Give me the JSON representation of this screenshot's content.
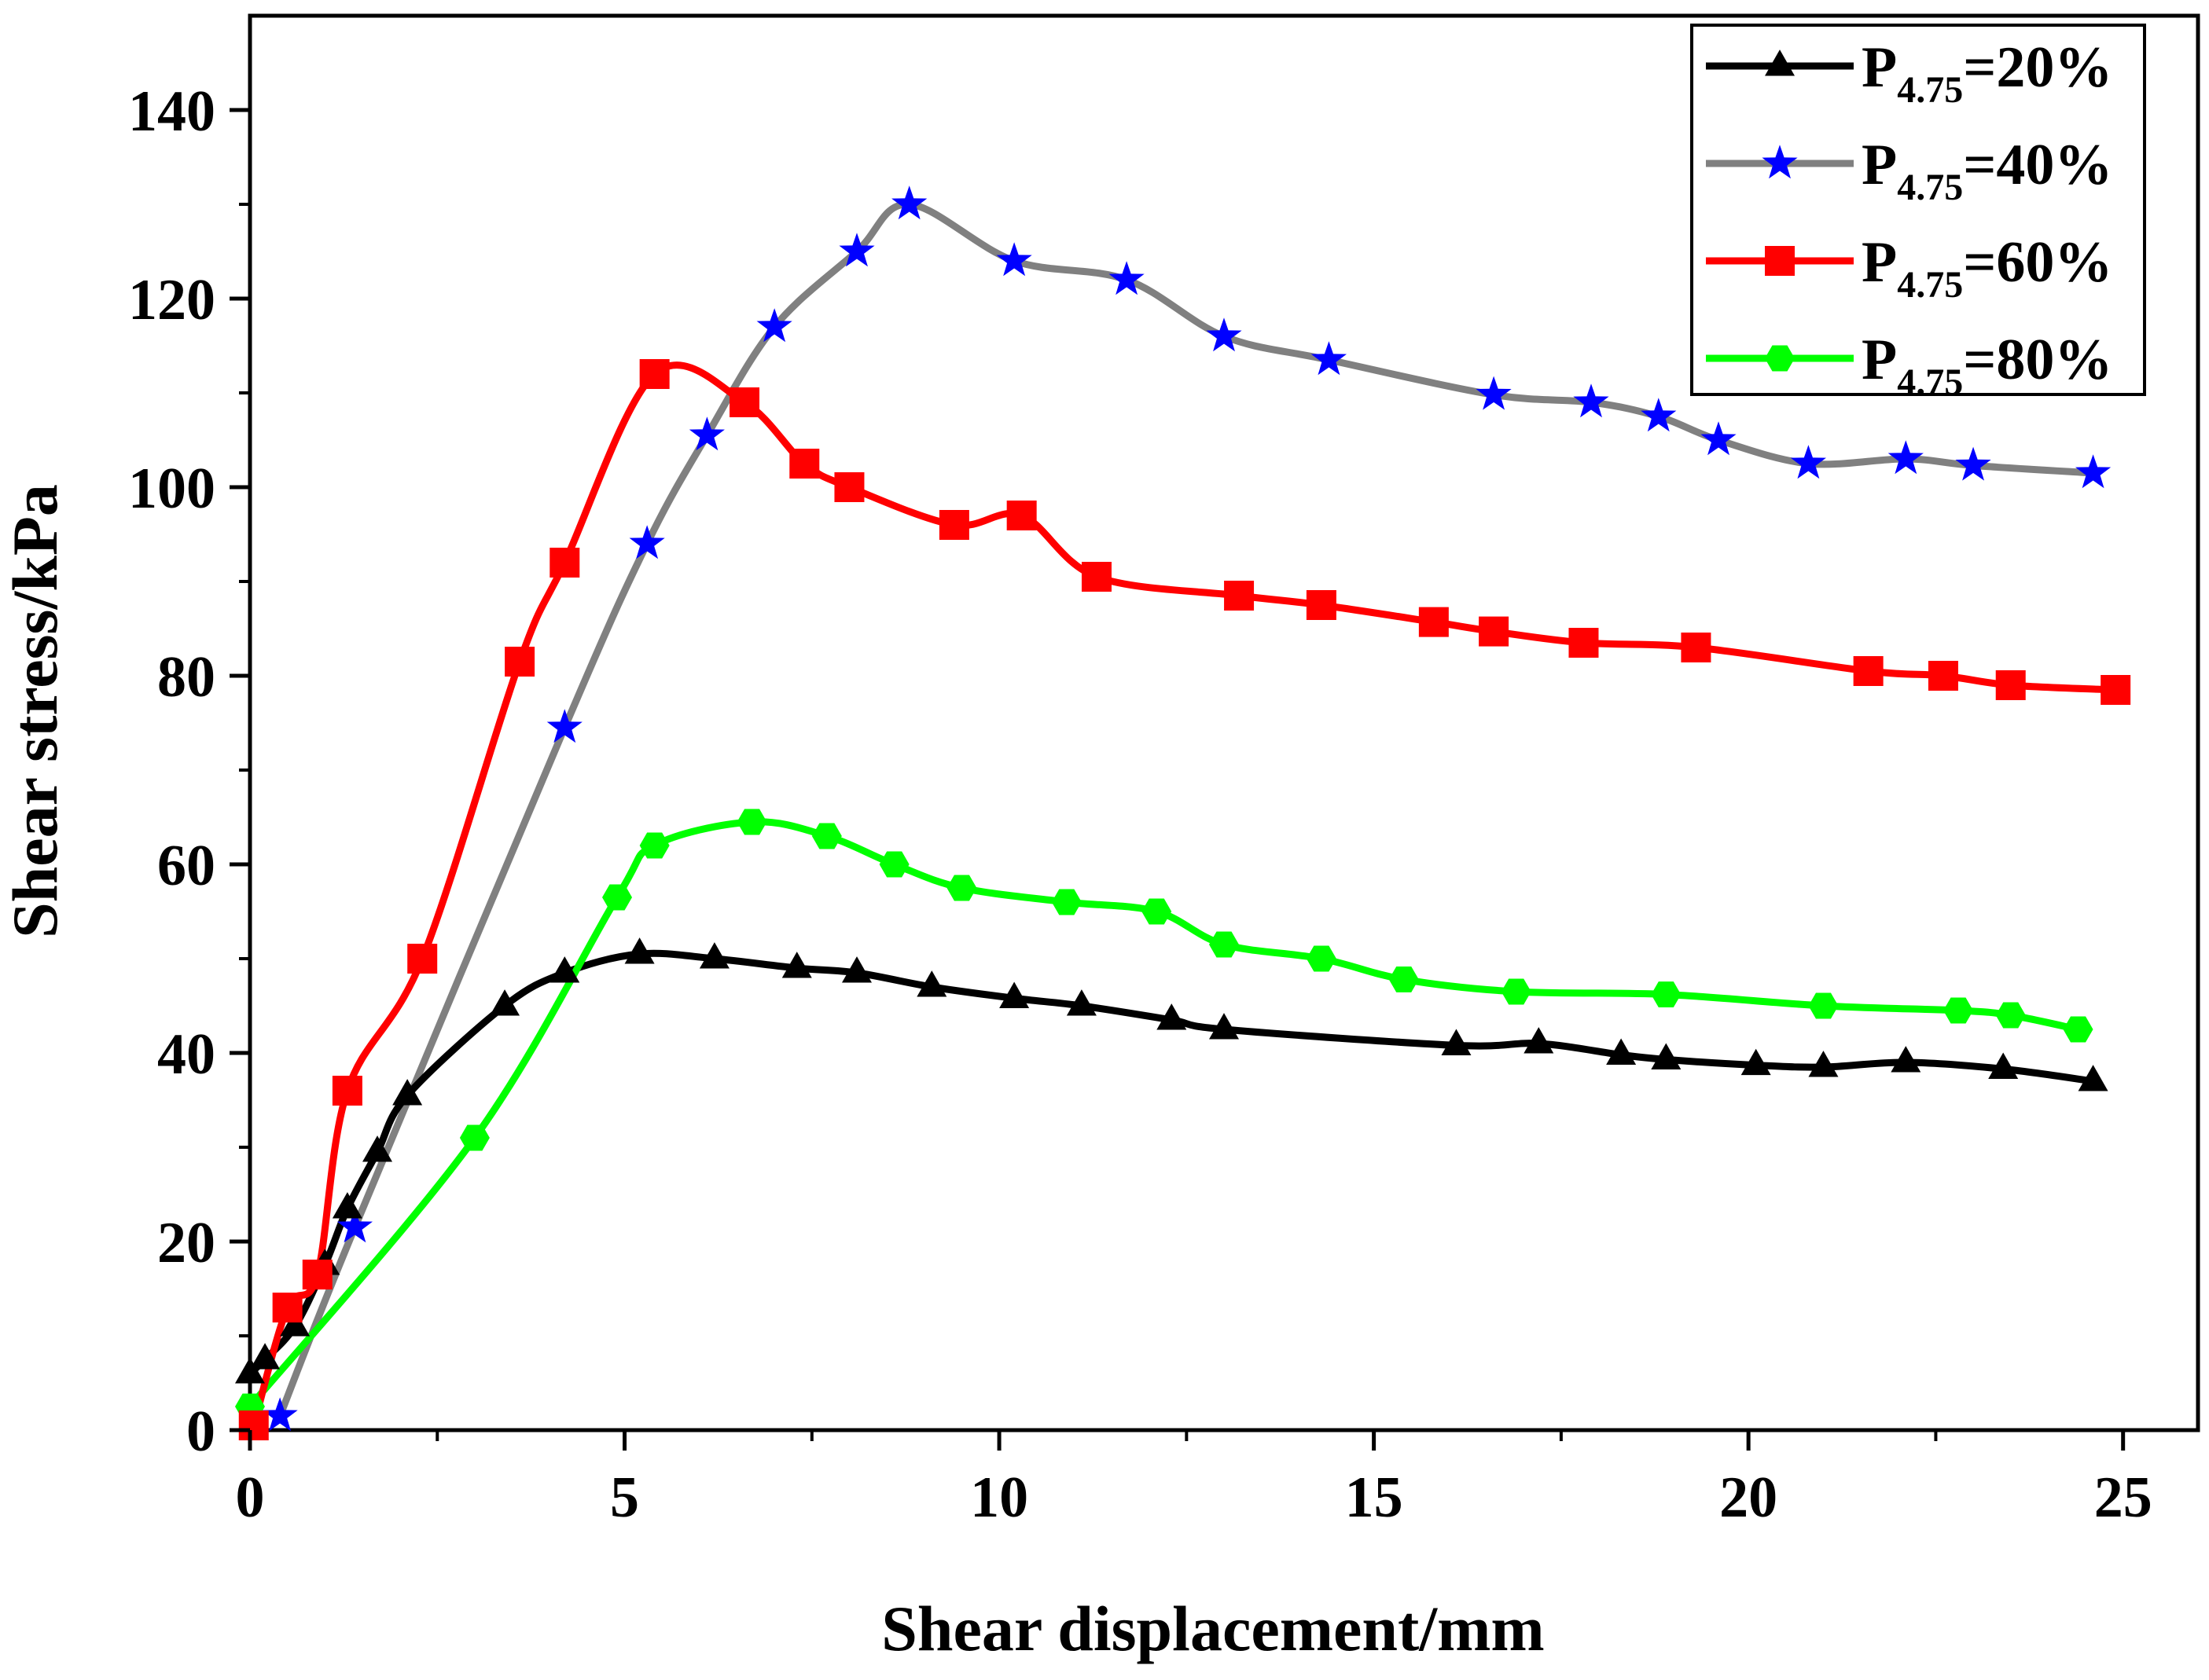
{
  "chart_data": {
    "type": "line",
    "xlabel": "Shear displacement/mm",
    "ylabel": "Shear stress/kPa",
    "xlim": [
      0,
      26
    ],
    "ylim": [
      0,
      150
    ],
    "xticks": [
      0,
      5,
      10,
      15,
      20,
      25
    ],
    "yticks": [
      0,
      20,
      40,
      60,
      80,
      100,
      120,
      140
    ],
    "legend_position": "top-right",
    "series": [
      {
        "name_prefix": "P",
        "name_sub": "4.75",
        "name_suffix": "=20%",
        "color": "#000000",
        "marker": "triangle",
        "marker_color": "#000000",
        "x": [
          0.0,
          0.2,
          0.6,
          1.0,
          1.3,
          1.7,
          2.1,
          3.4,
          4.2,
          5.2,
          6.2,
          7.3,
          8.1,
          9.1,
          10.2,
          11.1,
          12.3,
          13.0,
          16.1,
          17.2,
          18.3,
          18.9,
          20.1,
          21.0,
          22.1,
          23.4,
          24.6
        ],
        "y": [
          6.0,
          7.5,
          11.0,
          17.5,
          23.5,
          29.5,
          35.5,
          45.0,
          48.5,
          50.5,
          50.0,
          49.0,
          48.5,
          47.0,
          45.8,
          45.0,
          43.5,
          42.5,
          40.8,
          41.0,
          39.8,
          39.3,
          38.7,
          38.5,
          39.0,
          38.3,
          37.0
        ]
      },
      {
        "name_prefix": "P",
        "name_sub": "4.75",
        "name_suffix": "=40%",
        "color": "#808080",
        "marker": "star",
        "marker_color": "#0000ff",
        "x": [
          0.4,
          1.4,
          4.2,
          5.3,
          6.1,
          7.0,
          8.1,
          8.8,
          10.2,
          11.7,
          13.0,
          14.4,
          16.6,
          17.9,
          18.8,
          19.6,
          20.8,
          22.1,
          23.0,
          24.6
        ],
        "y": [
          1.5,
          21.5,
          74.5,
          94.0,
          105.5,
          117.0,
          125.0,
          130.0,
          124.0,
          122.0,
          116.0,
          113.5,
          109.8,
          109.0,
          107.5,
          105.0,
          102.5,
          103.0,
          102.3,
          101.5
        ]
      },
      {
        "name_prefix": "P",
        "name_sub": "4.75",
        "name_suffix": "=60%",
        "color": "#ff0000",
        "marker": "square",
        "marker_color": "#ff0000",
        "x": [
          0.05,
          0.5,
          0.9,
          1.3,
          2.3,
          3.6,
          4.2,
          5.4,
          6.6,
          7.4,
          8.0,
          9.4,
          10.3,
          11.3,
          13.2,
          14.3,
          15.8,
          16.6,
          17.8,
          19.3,
          21.6,
          22.6,
          23.5,
          24.9
        ],
        "y": [
          0.5,
          13.0,
          16.5,
          36.0,
          50.0,
          81.5,
          92.0,
          112.0,
          109.0,
          102.5,
          100.0,
          96.0,
          97.0,
          90.5,
          88.5,
          87.5,
          85.7,
          84.7,
          83.5,
          83.0,
          80.5,
          80.0,
          79.0,
          78.5
        ],
        "smooth": true
      },
      {
        "name_prefix": "P",
        "name_sub": "4.75",
        "name_suffix": "=80%",
        "color": "#00ff00",
        "marker": "hexagon",
        "marker_color": "#00ff00",
        "x": [
          0.0,
          3.0,
          4.9,
          5.4,
          6.7,
          7.7,
          8.6,
          9.5,
          10.9,
          12.1,
          13.0,
          14.3,
          15.4,
          16.9,
          18.9,
          21.0,
          22.8,
          23.5,
          24.4
        ],
        "y": [
          2.5,
          31.0,
          56.5,
          62.0,
          64.5,
          63.0,
          60.0,
          57.5,
          56.0,
          55.0,
          51.5,
          50.0,
          47.8,
          46.5,
          46.2,
          45.0,
          44.5,
          44.0,
          42.5
        ]
      }
    ]
  }
}
